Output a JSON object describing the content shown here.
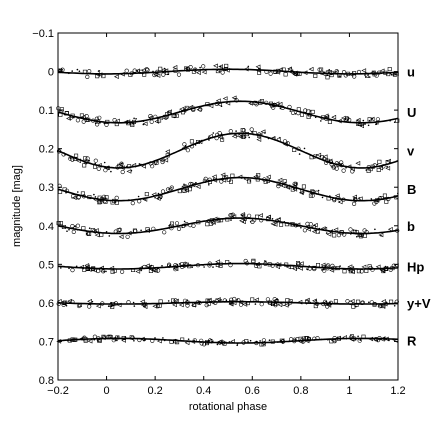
{
  "chart_data": {
    "type": "scatter",
    "xlabel": "rotational phase",
    "ylabel": "magnitude  [mag]",
    "xlim": [
      -0.2,
      1.2
    ],
    "ylim": [
      -0.1,
      0.8
    ],
    "y_inverted": true,
    "grid": false,
    "legend": "none",
    "x_ticks": [
      "−0.2",
      "0",
      "0.2",
      "0.4",
      "0.6",
      "0.8",
      "1",
      "1.2"
    ],
    "x_tick_values": [
      -0.2,
      0,
      0.2,
      0.4,
      0.6,
      0.8,
      1,
      1.2
    ],
    "y_ticks": [
      "−0.1",
      "0",
      "0.1",
      "0.2",
      "0.3",
      "0.4",
      "0.5",
      "0.6",
      "0.7",
      "0.8"
    ],
    "y_tick_values": [
      -0.1,
      0,
      0.1,
      0.2,
      0.3,
      0.4,
      0.5,
      0.6,
      0.7,
      0.8
    ],
    "series": [
      {
        "name": "u",
        "offset": 0.0,
        "amplitude": 0.006,
        "max_phase": 0.5,
        "scatter": 0.01
      },
      {
        "name": "U",
        "offset": 0.105,
        "amplitude": 0.028,
        "max_phase": 0.55,
        "scatter": 0.01
      },
      {
        "name": "v",
        "offset": 0.205,
        "amplitude": 0.045,
        "max_phase": 0.55,
        "scatter": 0.012
      },
      {
        "name": "B",
        "offset": 0.305,
        "amplitude": 0.03,
        "max_phase": 0.55,
        "scatter": 0.01
      },
      {
        "name": "b",
        "offset": 0.4,
        "amplitude": 0.02,
        "max_phase": 0.55,
        "scatter": 0.01
      },
      {
        "name": "Hp",
        "offset": 0.505,
        "amplitude": 0.007,
        "max_phase": 0.55,
        "scatter": 0.008
      },
      {
        "name": "y+V",
        "offset": 0.6,
        "amplitude": 0.003,
        "max_phase": 0.55,
        "scatter": 0.008
      },
      {
        "name": "R",
        "offset": 0.698,
        "amplitude": 0.006,
        "max_phase": 0.05,
        "scatter": 0.006
      }
    ]
  }
}
